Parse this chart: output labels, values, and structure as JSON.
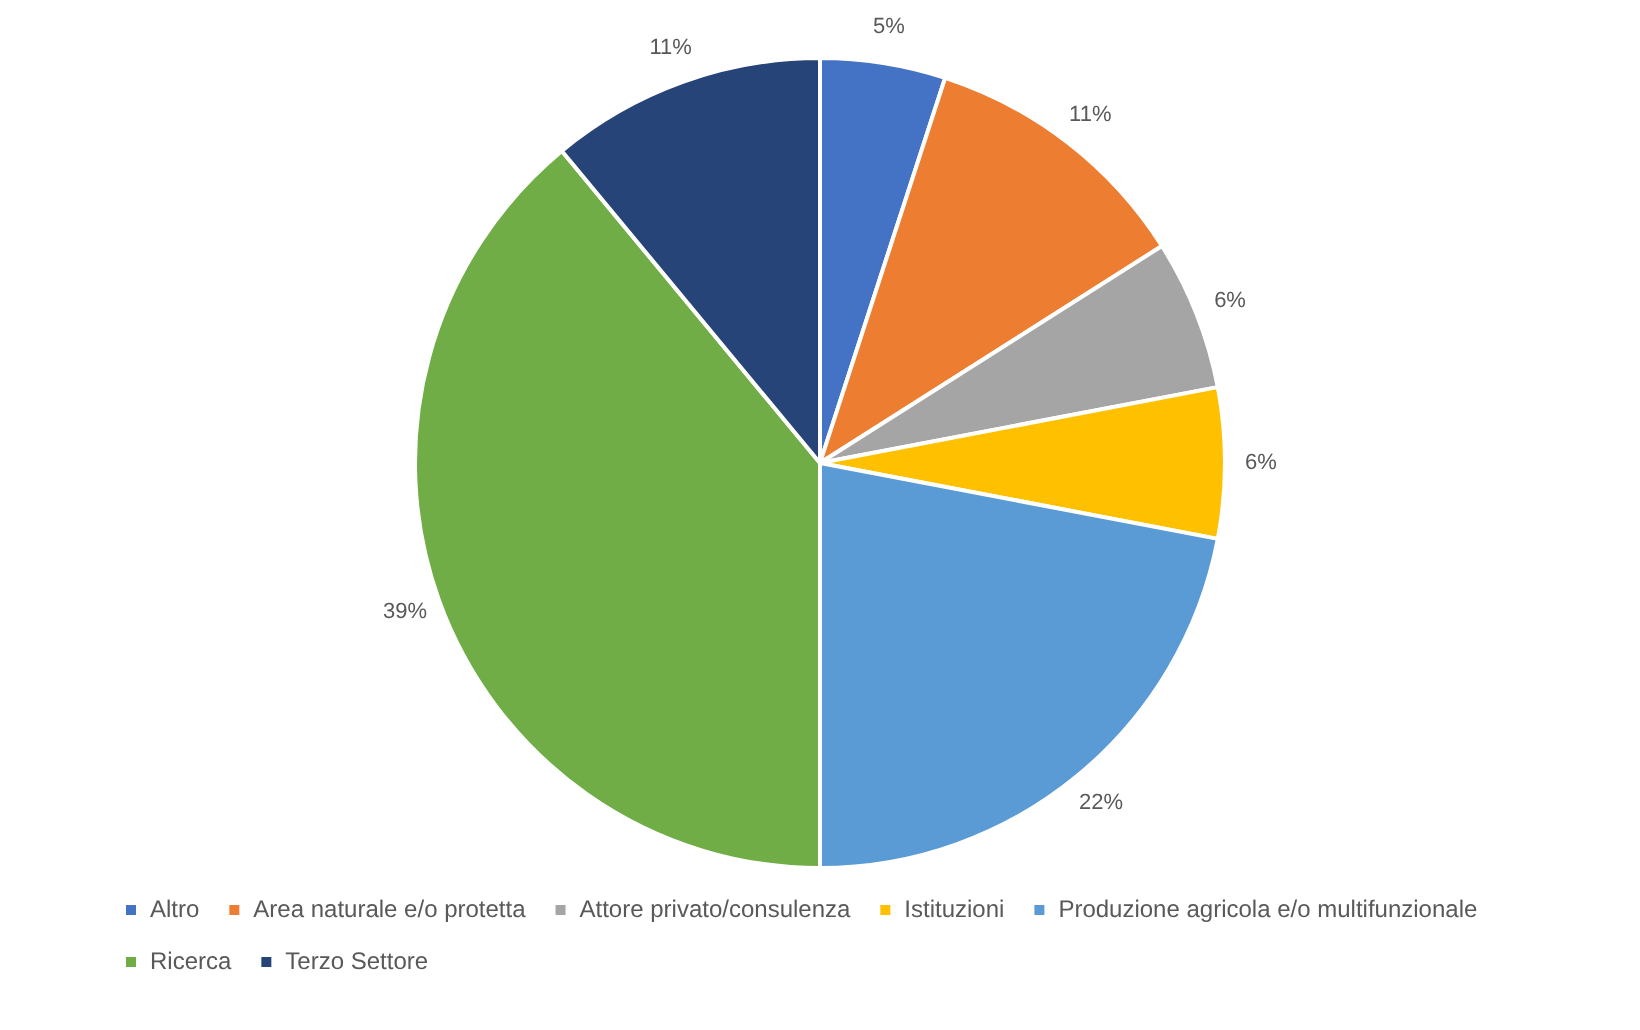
{
  "chart_data": {
    "type": "pie",
    "categories": [
      "Altro",
      "Area naturale e/o protetta",
      "Attore privato/consulenza",
      "Istituzioni",
      "Produzione agricola e/o multifunzionale",
      "Ricerca",
      "Terzo Settore"
    ],
    "values": [
      5,
      11,
      6,
      6,
      22,
      39,
      11
    ],
    "value_labels": [
      "5%",
      "11%",
      "6%",
      "6%",
      "22%",
      "39%",
      "11%"
    ],
    "colors": [
      "#4472c4",
      "#ed7d31",
      "#a5a5a5",
      "#ffc000",
      "#5b9bd5",
      "#70ad47",
      "#264478"
    ],
    "legend": "bottom"
  }
}
